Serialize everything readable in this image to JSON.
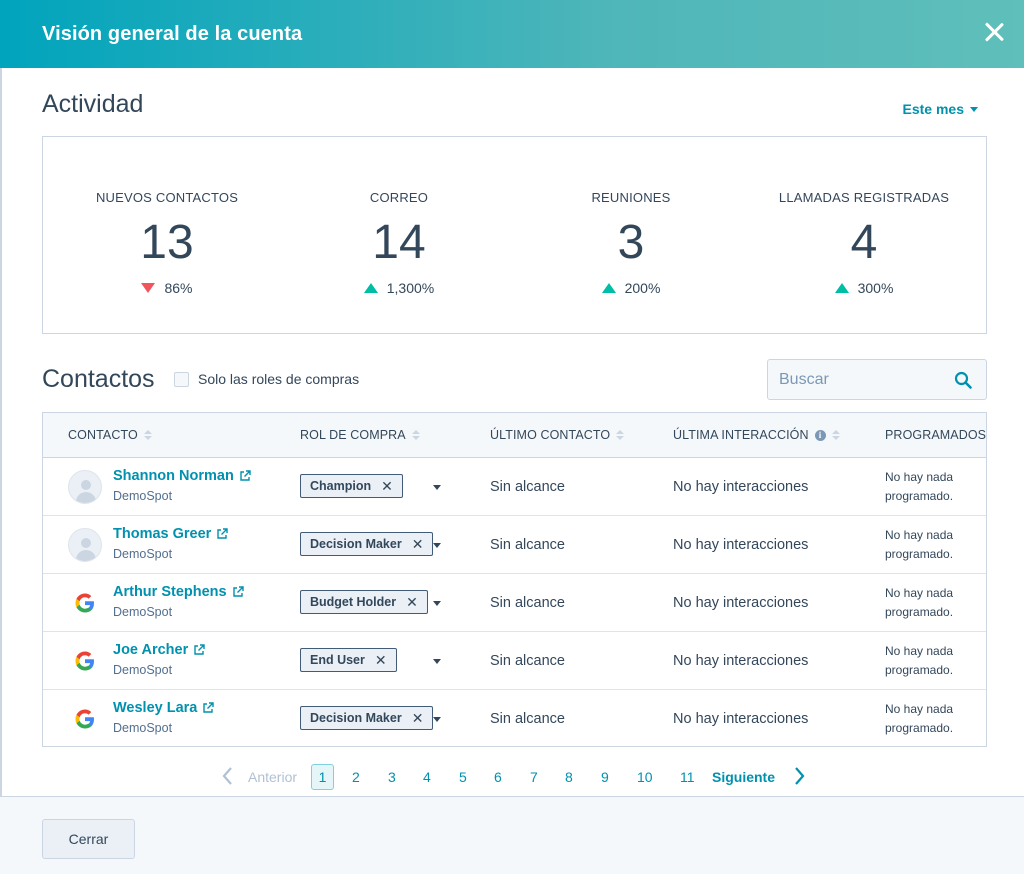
{
  "header": {
    "title": "Visión general de la cuenta",
    "close_icon": "close-icon"
  },
  "activity": {
    "title": "Actividad",
    "period": "Este mes",
    "stats": [
      {
        "label": "NUEVOS CONTACTOS",
        "value": "13",
        "change": "86%",
        "direction": "down"
      },
      {
        "label": "CORREO",
        "value": "14",
        "change": "1,300%",
        "direction": "up"
      },
      {
        "label": "REUNIONES",
        "value": "3",
        "change": "200%",
        "direction": "up"
      },
      {
        "label": "LLAMADAS REGISTRADAS",
        "value": "4",
        "change": "300%",
        "direction": "up"
      }
    ]
  },
  "contacts": {
    "title": "Contactos",
    "checkbox_label": "Solo las roles de compras",
    "search_placeholder": "Buscar",
    "columns": [
      "CONTACTO",
      "ROL DE COMPRA",
      "ÚLTIMO CONTACTO",
      "ÚLTIMA INTERACCIÓN",
      "PROGRAMADOS"
    ],
    "rows": [
      {
        "name": "Shannon Norman",
        "company": "DemoSpot",
        "avatar": "person",
        "role": "Champion",
        "last_contact": "Sin alcance",
        "last_interaction": "No hay interacciones",
        "scheduled": "No hay nada programado."
      },
      {
        "name": "Thomas Greer",
        "company": "DemoSpot",
        "avatar": "person",
        "role": "Decision Maker",
        "last_contact": "Sin alcance",
        "last_interaction": "No hay interacciones",
        "scheduled": "No hay nada programado."
      },
      {
        "name": "Arthur Stephens",
        "company": "DemoSpot",
        "avatar": "google",
        "role": "Budget Holder",
        "last_contact": "Sin alcance",
        "last_interaction": "No hay interacciones",
        "scheduled": "No hay nada programado."
      },
      {
        "name": "Joe Archer",
        "company": "DemoSpot",
        "avatar": "google",
        "role": "End User",
        "last_contact": "Sin alcance",
        "last_interaction": "No hay interacciones",
        "scheduled": "No hay nada programado."
      },
      {
        "name": "Wesley Lara",
        "company": "DemoSpot",
        "avatar": "google",
        "role": "Decision Maker",
        "last_contact": "Sin alcance",
        "last_interaction": "No hay interacciones",
        "scheduled": "No hay nada programado."
      }
    ]
  },
  "pagination": {
    "prev": "Anterior",
    "next": "Siguiente",
    "pages": [
      "1",
      "2",
      "3",
      "4",
      "5",
      "6",
      "7",
      "8",
      "9",
      "10",
      "11"
    ],
    "current": "1"
  },
  "footer": {
    "close_label": "Cerrar"
  },
  "colors": {
    "accent": "#0091ae",
    "up": "#00bda5",
    "down": "#f2545b",
    "header_start": "#00a4bd",
    "header_end": "#5fbfba"
  }
}
